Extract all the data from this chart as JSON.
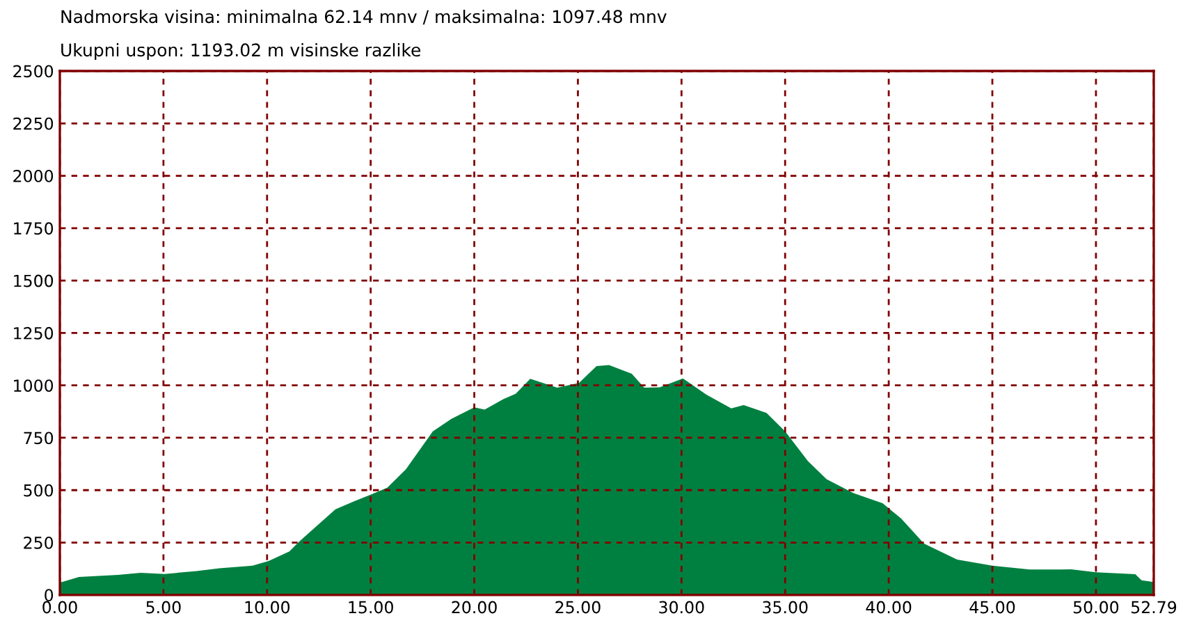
{
  "chart_data": {
    "type": "area",
    "title": "Nadmorska visina: minimalna 62.14 mnv / maksimalna: 1097.48 mnv",
    "subtitle": "Ukupni uspon: 1193.02 m visinske razlike",
    "x": [
      0,
      0.1,
      0.92,
      2.8,
      3.9,
      5.05,
      6.6,
      7.7,
      9.3,
      10.08,
      11.08,
      11.5,
      13.3,
      14.2,
      15.04,
      15.8,
      16.7,
      18.0,
      18.9,
      20.0,
      20.5,
      21.4,
      22.0,
      22.7,
      24.0,
      25.05,
      25.9,
      26.5,
      27.6,
      28.2,
      28.95,
      30.07,
      31.2,
      32.4,
      33.0,
      34.1,
      35.0,
      36.1,
      37.0,
      38.3,
      39.7,
      40.6,
      41.7,
      43.3,
      45.0,
      46.8,
      48.8,
      50.0,
      51.9,
      52.2,
      52.79
    ],
    "series": [
      {
        "color": "#008040",
        "values": [
          62,
          62,
          86,
          96,
          106,
          100,
          114,
          127,
          140,
          162,
          208,
          250,
          409,
          447,
          480,
          512,
          600,
          781,
          840,
          895,
          884,
          934,
          960,
          1031,
          989,
          1011,
          1092,
          1097,
          1055,
          989,
          991,
          1033,
          956,
          890,
          906,
          869,
          781,
          639,
          552,
          486,
          438,
          365,
          245,
          169,
          140,
          121,
          122,
          108,
          99,
          70,
          62
        ]
      }
    ],
    "xlim": [
      0,
      52.79
    ],
    "xticks": [
      {
        "value": 0,
        "label": "0.00"
      },
      {
        "value": 5,
        "label": "5.00"
      },
      {
        "value": 10,
        "label": "10.00"
      },
      {
        "value": 15,
        "label": "15.00"
      },
      {
        "value": 20,
        "label": "20.00"
      },
      {
        "value": 25,
        "label": "25.00"
      },
      {
        "value": 30,
        "label": "30.00"
      },
      {
        "value": 35,
        "label": "35.00"
      },
      {
        "value": 40,
        "label": "40.00"
      },
      {
        "value": 45,
        "label": "45.00"
      },
      {
        "value": 50,
        "label": "50.00"
      },
      {
        "value": 52.79,
        "label": "52.79"
      }
    ],
    "ylim": [
      0,
      2500
    ],
    "yticks": [
      0,
      250,
      500,
      750,
      1000,
      1250,
      1500,
      1750,
      2000,
      2250,
      2500
    ],
    "grid": true
  }
}
